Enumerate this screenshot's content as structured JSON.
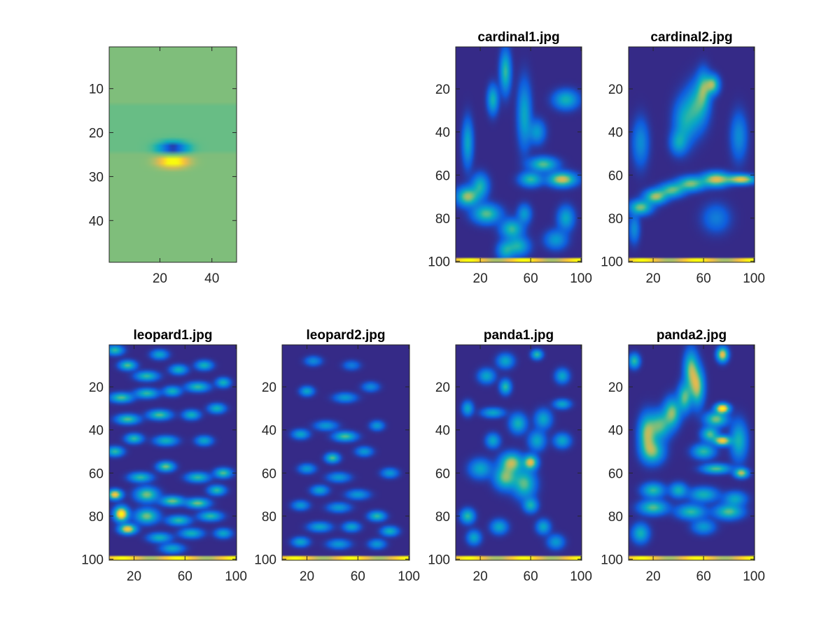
{
  "figure": {
    "background": "#ffffff",
    "colormap": "parula"
  },
  "chart_data": [
    {
      "type": "heatmap",
      "title": "",
      "xlabel": "",
      "ylabel": "",
      "xlim": [
        0.5,
        49.5
      ],
      "ylim": [
        0.5,
        49.5
      ],
      "y_reversed": true,
      "xticks": [
        20,
        40
      ],
      "yticks": [
        10,
        20,
        30,
        40
      ],
      "description_values": {
        "background_level": 0.55,
        "negative_lobe": {
          "x": 25,
          "y": 23.5,
          "level": 0.0
        },
        "positive_lobe": {
          "x": 25,
          "y": 26.5,
          "level": 1.0
        }
      }
    },
    {
      "type": "heatmap",
      "title": "cardinal1.jpg",
      "xlabel": "",
      "ylabel": "",
      "xlim": [
        0.5,
        100.5
      ],
      "ylim": [
        0.5,
        100.5
      ],
      "y_reversed": true,
      "xticks": [
        20,
        60,
        100
      ],
      "yticks": [
        20,
        40,
        60,
        80,
        100
      ]
    },
    {
      "type": "heatmap",
      "title": "cardinal2.jpg",
      "xlabel": "",
      "ylabel": "",
      "xlim": [
        0.5,
        100.5
      ],
      "ylim": [
        0.5,
        100.5
      ],
      "y_reversed": true,
      "xticks": [
        20,
        60,
        100
      ],
      "yticks": [
        20,
        40,
        60,
        80,
        100
      ]
    },
    {
      "type": "heatmap",
      "title": "leopard1.jpg",
      "xlabel": "",
      "ylabel": "",
      "xlim": [
        0.5,
        100.5
      ],
      "ylim": [
        0.5,
        100.5
      ],
      "y_reversed": true,
      "xticks": [
        20,
        60,
        100
      ],
      "yticks": [
        20,
        40,
        60,
        80,
        100
      ]
    },
    {
      "type": "heatmap",
      "title": "leopard2.jpg",
      "xlabel": "",
      "ylabel": "",
      "xlim": [
        0.5,
        100.5
      ],
      "ylim": [
        0.5,
        100.5
      ],
      "y_reversed": true,
      "xticks": [
        20,
        60,
        100
      ],
      "yticks": [
        20,
        40,
        60,
        80,
        100
      ]
    },
    {
      "type": "heatmap",
      "title": "panda1.jpg",
      "xlabel": "",
      "ylabel": "",
      "xlim": [
        0.5,
        100.5
      ],
      "ylim": [
        0.5,
        100.5
      ],
      "y_reversed": true,
      "xticks": [
        20,
        60,
        100
      ],
      "yticks": [
        20,
        40,
        60,
        80,
        100
      ]
    },
    {
      "type": "heatmap",
      "title": "panda2.jpg",
      "xlabel": "",
      "ylabel": "",
      "xlim": [
        0.5,
        100.5
      ],
      "ylim": [
        0.5,
        100.5
      ],
      "y_reversed": true,
      "xticks": [
        20,
        60,
        100
      ],
      "yticks": [
        20,
        40,
        60,
        80,
        100
      ]
    }
  ]
}
